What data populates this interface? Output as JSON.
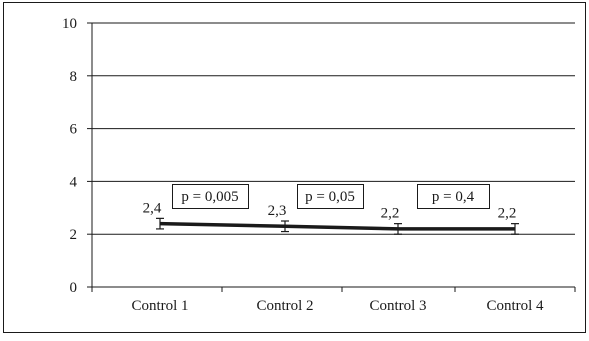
{
  "chart_data": {
    "type": "line",
    "categories": [
      "Control 1",
      "Control 2",
      "Control 3",
      "Control 4"
    ],
    "series": [
      {
        "values": [
          2.4,
          2.3,
          2.2,
          2.2
        ],
        "error": [
          0.2,
          0.2,
          0.2,
          0.2
        ],
        "data_labels": [
          "2,4",
          "2,3",
          "2,2",
          "2,2"
        ],
        "color": "#1a1a1a"
      }
    ],
    "ylim": [
      0,
      10
    ],
    "yticks": [
      0,
      2,
      4,
      6,
      8,
      10
    ],
    "ytick_labels": [
      "0",
      "2",
      "4",
      "6",
      "8",
      "10"
    ],
    "grid": true,
    "annotations": [
      {
        "text": "p = 0,005",
        "between": [
          0,
          1
        ]
      },
      {
        "text": "p = 0,05",
        "between": [
          1,
          2
        ]
      },
      {
        "text": "p = 0,4",
        "between": [
          2,
          3
        ]
      }
    ],
    "title": "",
    "xlabel": "",
    "ylabel": ""
  }
}
